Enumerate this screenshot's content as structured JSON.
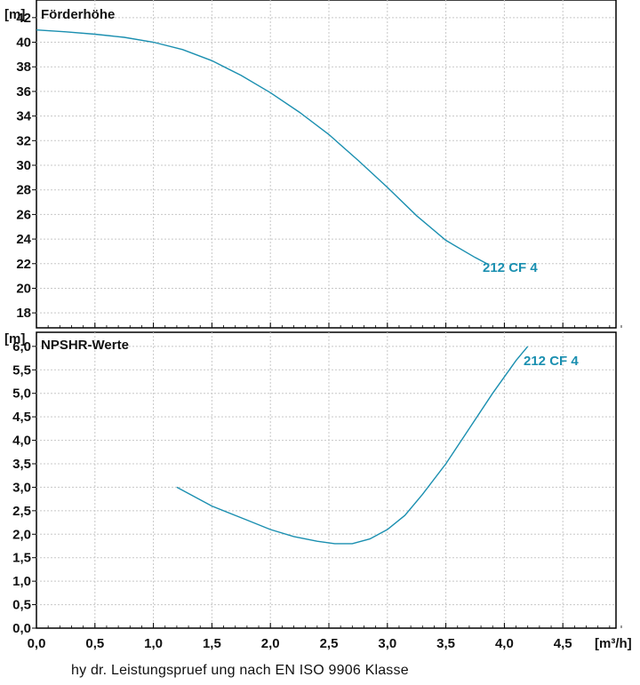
{
  "footnote": "hy dr. Leistungspruef ung nach EN ISO 9906 Klasse",
  "colors": {
    "curve": "#1a8fb0",
    "frame": "#000000",
    "grid": "#c8c8c8"
  },
  "chart_data": [
    {
      "type": "line",
      "title": "Förderhöhe",
      "ylabel": "[m]",
      "xlabel": "[m³/h]",
      "xlim": [
        0,
        5
      ],
      "ylim": [
        17,
        43
      ],
      "xticks": [
        "0,0",
        "0,5",
        "1,0",
        "1,5",
        "2,0",
        "2,5",
        "3,0",
        "3,5",
        "4,0",
        "4,5"
      ],
      "yticks": [
        "18",
        "20",
        "22",
        "24",
        "26",
        "28",
        "30",
        "32",
        "34",
        "36",
        "38",
        "40",
        "42"
      ],
      "grid": true,
      "series": [
        {
          "name": "212 CF 4",
          "x": [
            0.0,
            0.25,
            0.5,
            0.75,
            1.0,
            1.25,
            1.5,
            1.75,
            2.0,
            2.25,
            2.5,
            2.75,
            3.0,
            3.25,
            3.5,
            3.75,
            3.85
          ],
          "y": [
            41.0,
            40.85,
            40.65,
            40.4,
            40.0,
            39.4,
            38.5,
            37.3,
            35.9,
            34.3,
            32.5,
            30.4,
            28.2,
            25.9,
            23.9,
            22.5,
            22.0
          ]
        }
      ]
    },
    {
      "type": "line",
      "title": "NPSHR-Werte",
      "ylabel": "[m]",
      "xlabel": "[m³/h]",
      "xlim": [
        0,
        5
      ],
      "ylim": [
        0,
        6.3
      ],
      "xticks": [
        "0,0",
        "0,5",
        "1,0",
        "1,5",
        "2,0",
        "2,5",
        "3,0",
        "3,5",
        "4,0",
        "4,5"
      ],
      "yticks": [
        "0,0",
        "0,5",
        "1,0",
        "1,5",
        "2,0",
        "2,5",
        "3,0",
        "3,5",
        "4,0",
        "4,5",
        "5,0",
        "5,5",
        "6,0"
      ],
      "grid": true,
      "series": [
        {
          "name": "212 CF 4",
          "x": [
            1.2,
            1.5,
            1.8,
            2.0,
            2.2,
            2.4,
            2.55,
            2.7,
            2.85,
            3.0,
            3.15,
            3.3,
            3.5,
            3.7,
            3.9,
            4.1,
            4.2
          ],
          "y": [
            3.0,
            2.6,
            2.3,
            2.1,
            1.95,
            1.85,
            1.8,
            1.8,
            1.9,
            2.1,
            2.4,
            2.85,
            3.5,
            4.25,
            5.0,
            5.7,
            6.0
          ]
        }
      ]
    }
  ]
}
